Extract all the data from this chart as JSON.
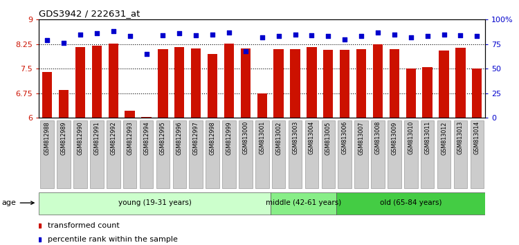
{
  "title": "GDS3942 / 222631_at",
  "samples": [
    "GSM812988",
    "GSM812989",
    "GSM812990",
    "GSM812991",
    "GSM812992",
    "GSM812993",
    "GSM812994",
    "GSM812995",
    "GSM812996",
    "GSM812997",
    "GSM812998",
    "GSM812999",
    "GSM813000",
    "GSM813001",
    "GSM813002",
    "GSM813003",
    "GSM813004",
    "GSM813005",
    "GSM813006",
    "GSM813007",
    "GSM813008",
    "GSM813009",
    "GSM813010",
    "GSM813011",
    "GSM813012",
    "GSM813013",
    "GSM813014"
  ],
  "bar_values": [
    7.4,
    6.85,
    8.15,
    8.2,
    8.27,
    6.2,
    6.02,
    8.1,
    8.15,
    8.12,
    7.95,
    8.27,
    8.12,
    6.75,
    8.1,
    8.1,
    8.15,
    8.07,
    8.07,
    8.1,
    8.25,
    8.1,
    7.5,
    7.55,
    8.05,
    8.13,
    7.5
  ],
  "percentile_values": [
    79,
    76,
    85,
    86,
    88,
    83,
    65,
    84,
    86,
    84,
    85,
    87,
    68,
    82,
    83,
    85,
    84,
    83,
    80,
    83,
    87,
    85,
    82,
    83,
    85,
    84,
    83
  ],
  "groups": [
    {
      "label": "young (19-31 years)",
      "start": 0,
      "end": 14,
      "color": "#ccffcc"
    },
    {
      "label": "middle (42-61 years)",
      "start": 14,
      "end": 18,
      "color": "#88ee88"
    },
    {
      "label": "old (65-84 years)",
      "start": 18,
      "end": 27,
      "color": "#44cc44"
    }
  ],
  "ylim_left": [
    6,
    9
  ],
  "ylim_right": [
    0,
    100
  ],
  "yticks_left": [
    6,
    6.75,
    7.5,
    8.25,
    9
  ],
  "ytick_labels_left": [
    "6",
    "6.75",
    "7.5",
    "8.25",
    "9"
  ],
  "yticks_right": [
    0,
    25,
    50,
    75,
    100
  ],
  "ytick_labels_right": [
    "0",
    "25",
    "50",
    "75",
    "100%"
  ],
  "bar_color": "#cc1100",
  "dot_color": "#0000cc",
  "bar_bottom": 6,
  "hlines": [
    6.75,
    7.5,
    8.25
  ],
  "age_label": "age",
  "legend_bar": "transformed count",
  "legend_dot": "percentile rank within the sample",
  "xtick_bg_color": "#cccccc",
  "xtick_border_color": "#888888"
}
